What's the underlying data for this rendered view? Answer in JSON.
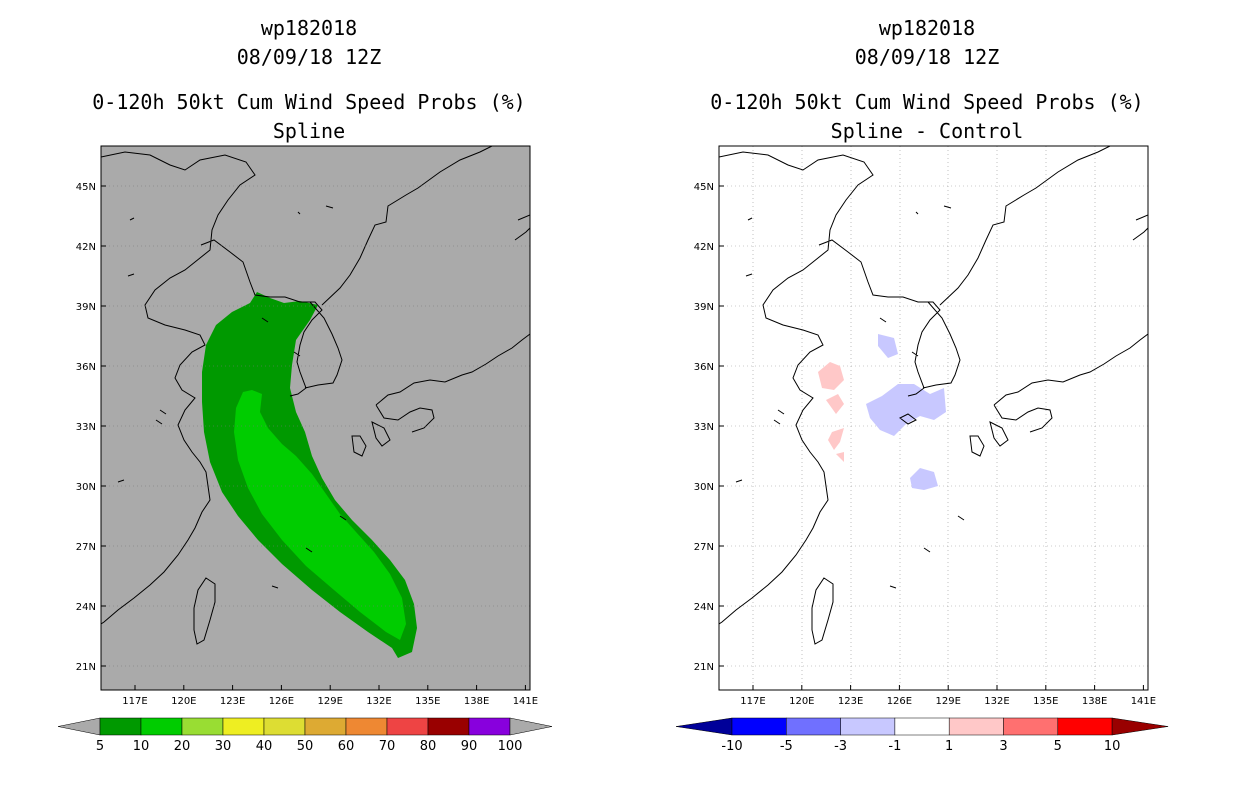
{
  "left": {
    "storm_id": "wp182018",
    "datetime": "08/09/18 12Z",
    "product": "0-120h 50kt Cum Wind Speed Probs (%)",
    "subtitle": "Spline",
    "lat_labels": [
      "45N",
      "42N",
      "39N",
      "36N",
      "33N",
      "30N",
      "27N",
      "24N",
      "21N"
    ],
    "lon_labels": [
      "117E",
      "120E",
      "123E",
      "126E",
      "129E",
      "132E",
      "135E",
      "138E",
      "141E"
    ],
    "legend": {
      "colors": [
        "#009900",
        "#00cc00",
        "#99dd33",
        "#eeee22",
        "#dddd33",
        "#ddaa33",
        "#ee8833",
        "#ee4444",
        "#990000",
        "#8800dd"
      ],
      "labels": [
        "5",
        "10",
        "20",
        "30",
        "40",
        "50",
        "60",
        "70",
        "80",
        "90",
        "100"
      ]
    },
    "colors": {
      "background": "#aaaaaa",
      "outer_band": "#009900",
      "inner_band": "#00cc00"
    }
  },
  "right": {
    "storm_id": "wp182018",
    "datetime": "08/09/18 12Z",
    "product": "0-120h 50kt Cum Wind Speed Probs (%)",
    "subtitle": "Spline - Control",
    "lat_labels": [
      "45N",
      "42N",
      "39N",
      "36N",
      "33N",
      "30N",
      "27N",
      "24N",
      "21N"
    ],
    "lon_labels": [
      "117E",
      "120E",
      "123E",
      "126E",
      "129E",
      "132E",
      "135E",
      "138E",
      "141E"
    ],
    "legend": {
      "colors": [
        "#0000ff",
        "#7070ff",
        "#c8c8ff",
        "#ffffff",
        "#ffc8c8",
        "#ff7070",
        "#ff0000"
      ],
      "left_tip": "#000099",
      "right_tip": "#990000",
      "labels": [
        "-10",
        "-5",
        "-3",
        "-1",
        "1",
        "3",
        "5",
        "10"
      ]
    },
    "colors": {
      "positive": "#ffc8c8",
      "negative": "#c8c8ff"
    }
  }
}
